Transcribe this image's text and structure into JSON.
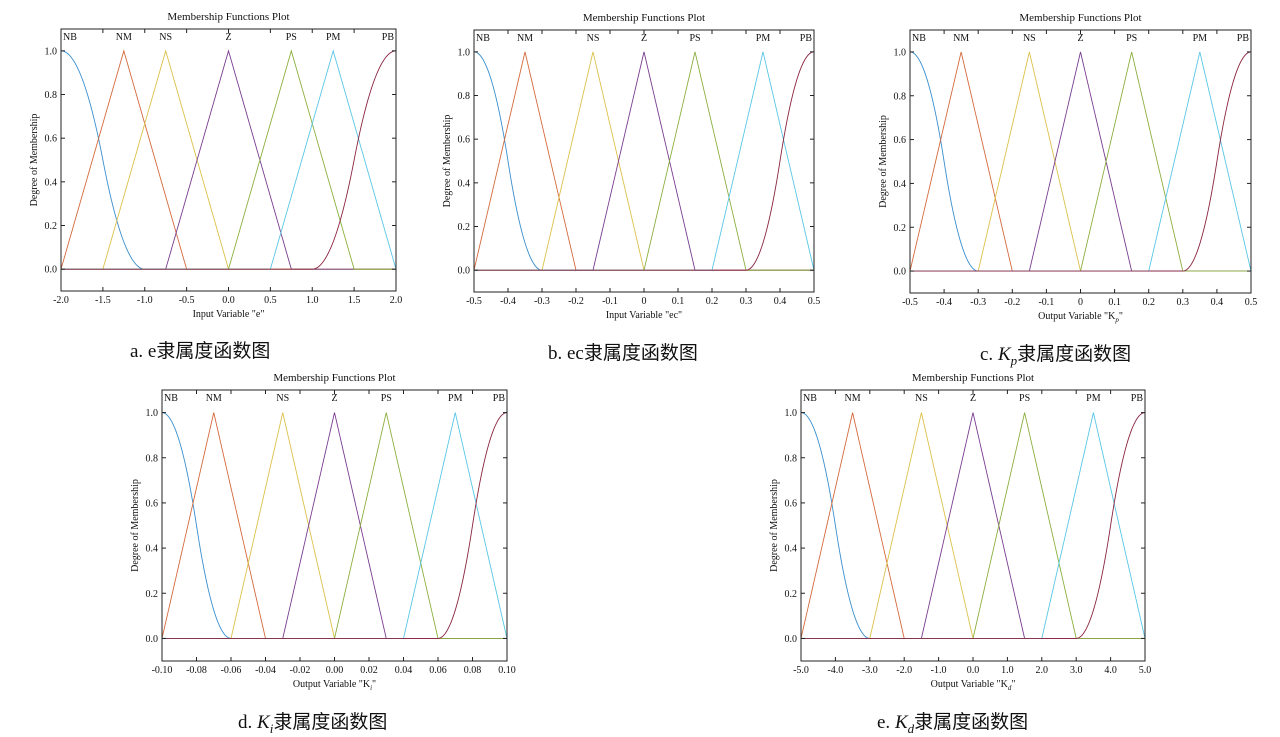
{
  "colors": {
    "NB": "#3a8fce",
    "NM": "#d46a3c",
    "NS": "#dcc14a",
    "Z": "#7a3d8f",
    "PS": "#8caf3f",
    "PM": "#59c6e6",
    "PB": "#8a2540"
  },
  "captions": [
    {
      "prefix": "a. e",
      "suffix": "隶属度函数图"
    },
    {
      "prefix": "b. ec",
      "suffix": "隶属度函数图"
    },
    {
      "prefix": "c. ",
      "var": "K",
      "sub": "p",
      "suffix": "隶属度函数图"
    },
    {
      "prefix": "d. ",
      "var": "K",
      "sub": "i",
      "suffix": "隶属度函数图"
    },
    {
      "prefix": "e. ",
      "var": "K",
      "sub": "d",
      "suffix": "隶属度函数图"
    }
  ],
  "chart_data": [
    {
      "type": "line",
      "title": "Membership Functions Plot",
      "xlabel": "Input Variable \"e\"",
      "ylabel": "Degree of Membership",
      "xlim": [
        -2,
        2
      ],
      "ylim": [
        -0.1,
        1.1
      ],
      "xticks": [
        -2,
        -1.5,
        -1,
        -0.5,
        0,
        0.5,
        1,
        1.5,
        2
      ],
      "xtick_labels": [
        "-2.0",
        "-1.5",
        "-1.0",
        "-0.5",
        "0.0",
        "0.5",
        "1.0",
        "1.5",
        "2.0"
      ],
      "yticks": [
        0,
        0.2,
        0.4,
        0.6,
        0.8,
        1.0
      ],
      "ytick_labels": [
        "0.0",
        "0.2",
        "0.4",
        "0.6",
        "0.8",
        "1.0"
      ],
      "series": [
        {
          "name": "NB",
          "kind": "zmf",
          "params": [
            -2,
            -1
          ]
        },
        {
          "name": "NM",
          "kind": "trimf",
          "params": [
            -2,
            -1.25,
            -0.5
          ]
        },
        {
          "name": "NS",
          "kind": "trimf",
          "params": [
            -1.5,
            -0.75,
            0
          ]
        },
        {
          "name": "Z",
          "kind": "trimf",
          "params": [
            -0.75,
            0,
            0.75
          ]
        },
        {
          "name": "PS",
          "kind": "trimf",
          "params": [
            0,
            0.75,
            1.5
          ]
        },
        {
          "name": "PM",
          "kind": "trimf",
          "params": [
            0.5,
            1.25,
            2
          ]
        },
        {
          "name": "PB",
          "kind": "smf",
          "params": [
            1,
            2
          ]
        }
      ]
    },
    {
      "type": "line",
      "title": "Membership Functions Plot",
      "xlabel": "Input Variable \"ec\"",
      "ylabel": "Degree of Membership",
      "xlim": [
        -0.5,
        0.5
      ],
      "ylim": [
        -0.1,
        1.1
      ],
      "xticks": [
        -0.5,
        -0.4,
        -0.3,
        -0.2,
        -0.1,
        0,
        0.1,
        0.2,
        0.3,
        0.4,
        0.5
      ],
      "xtick_labels": [
        "-0.5",
        "-0.4",
        "-0.3",
        "-0.2",
        "-0.1",
        "0",
        "0.1",
        "0.2",
        "0.3",
        "0.4",
        "0.5"
      ],
      "yticks": [
        0,
        0.2,
        0.4,
        0.6,
        0.8,
        1.0
      ],
      "ytick_labels": [
        "0.0",
        "0.2",
        "0.4",
        "0.6",
        "0.8",
        "1.0"
      ],
      "series": [
        {
          "name": "NB",
          "kind": "zmf",
          "params": [
            -0.5,
            -0.3
          ]
        },
        {
          "name": "NM",
          "kind": "trimf",
          "params": [
            -0.5,
            -0.35,
            -0.2
          ]
        },
        {
          "name": "NS",
          "kind": "trimf",
          "params": [
            -0.3,
            -0.15,
            0
          ]
        },
        {
          "name": "Z",
          "kind": "trimf",
          "params": [
            -0.15,
            0,
            0.15
          ]
        },
        {
          "name": "PS",
          "kind": "trimf",
          "params": [
            0,
            0.15,
            0.3
          ]
        },
        {
          "name": "PM",
          "kind": "trimf",
          "params": [
            0.2,
            0.35,
            0.5
          ]
        },
        {
          "name": "PB",
          "kind": "smf",
          "params": [
            0.3,
            0.5
          ]
        }
      ]
    },
    {
      "type": "line",
      "title": "Membership Functions Plot",
      "xlabel": "Output Variable \"K",
      "xlabel_sub": "p",
      "xlabel_end": "\"",
      "ylabel": "Degree of Membership",
      "xlim": [
        -0.5,
        0.5
      ],
      "ylim": [
        -0.1,
        1.1
      ],
      "xticks": [
        -0.5,
        -0.4,
        -0.3,
        -0.2,
        -0.1,
        0,
        0.1,
        0.2,
        0.3,
        0.4,
        0.5
      ],
      "xtick_labels": [
        "-0.5",
        "-0.4",
        "-0.3",
        "-0.2",
        "-0.1",
        "0",
        "0.1",
        "0.2",
        "0.3",
        "0.4",
        "0.5"
      ],
      "yticks": [
        0,
        0.2,
        0.4,
        0.6,
        0.8,
        1.0
      ],
      "ytick_labels": [
        "0.0",
        "0.2",
        "0.4",
        "0.6",
        "0.8",
        "1.0"
      ],
      "series": [
        {
          "name": "NB",
          "kind": "zmf",
          "params": [
            -0.5,
            -0.3
          ]
        },
        {
          "name": "NM",
          "kind": "trimf",
          "params": [
            -0.5,
            -0.35,
            -0.2
          ]
        },
        {
          "name": "NS",
          "kind": "trimf",
          "params": [
            -0.3,
            -0.15,
            0
          ]
        },
        {
          "name": "Z",
          "kind": "trimf",
          "params": [
            -0.15,
            0,
            0.15
          ]
        },
        {
          "name": "PS",
          "kind": "trimf",
          "params": [
            0,
            0.15,
            0.3
          ]
        },
        {
          "name": "PM",
          "kind": "trimf",
          "params": [
            0.2,
            0.35,
            0.5
          ]
        },
        {
          "name": "PB",
          "kind": "smf",
          "params": [
            0.3,
            0.5
          ]
        }
      ]
    },
    {
      "type": "line",
      "title": "Membership Functions Plot",
      "xlabel": "Output Variable \"K",
      "xlabel_sub": "i",
      "xlabel_end": "\"",
      "ylabel": "Degree of Membership",
      "xlim": [
        -0.1,
        0.1
      ],
      "ylim": [
        -0.1,
        1.1
      ],
      "xticks": [
        -0.1,
        -0.08,
        -0.06,
        -0.04,
        -0.02,
        0,
        0.02,
        0.04,
        0.06,
        0.08,
        0.1
      ],
      "xtick_labels": [
        "-0.10",
        "-0.08",
        "-0.06",
        "-0.04",
        "-0.02",
        "0.00",
        "0.02",
        "0.04",
        "0.06",
        "0.08",
        "0.10"
      ],
      "yticks": [
        0,
        0.2,
        0.4,
        0.6,
        0.8,
        1.0
      ],
      "ytick_labels": [
        "0.0",
        "0.2",
        "0.4",
        "0.6",
        "0.8",
        "1.0"
      ],
      "series": [
        {
          "name": "NB",
          "kind": "zmf",
          "params": [
            -0.1,
            -0.06
          ]
        },
        {
          "name": "NM",
          "kind": "trimf",
          "params": [
            -0.1,
            -0.07,
            -0.04
          ]
        },
        {
          "name": "NS",
          "kind": "trimf",
          "params": [
            -0.06,
            -0.03,
            0
          ]
        },
        {
          "name": "Z",
          "kind": "trimf",
          "params": [
            -0.03,
            0,
            0.03
          ]
        },
        {
          "name": "PS",
          "kind": "trimf",
          "params": [
            0,
            0.03,
            0.06
          ]
        },
        {
          "name": "PM",
          "kind": "trimf",
          "params": [
            0.04,
            0.07,
            0.1
          ]
        },
        {
          "name": "PB",
          "kind": "smf",
          "params": [
            0.06,
            0.1
          ]
        }
      ]
    },
    {
      "type": "line",
      "title": "Membership Functions Plot",
      "xlabel": "Output Variable \"K",
      "xlabel_sub": "d",
      "xlabel_end": "\"",
      "ylabel": "Degree of Membership",
      "xlim": [
        -5,
        5
      ],
      "ylim": [
        -0.1,
        1.1
      ],
      "xticks": [
        -5,
        -4,
        -3,
        -2,
        -1,
        0,
        1,
        2,
        3,
        4,
        5
      ],
      "xtick_labels": [
        "-5.0",
        "-4.0",
        "-3.0",
        "-2.0",
        "-1.0",
        "0.0",
        "1.0",
        "2.0",
        "3.0",
        "4.0",
        "5.0"
      ],
      "yticks": [
        0,
        0.2,
        0.4,
        0.6,
        0.8,
        1.0
      ],
      "ytick_labels": [
        "0.0",
        "0.2",
        "0.4",
        "0.6",
        "0.8",
        "1.0"
      ],
      "series": [
        {
          "name": "NB",
          "kind": "zmf",
          "params": [
            -5,
            -3
          ]
        },
        {
          "name": "NM",
          "kind": "trimf",
          "params": [
            -5,
            -3.5,
            -2
          ]
        },
        {
          "name": "NS",
          "kind": "trimf",
          "params": [
            -3,
            -1.5,
            0
          ]
        },
        {
          "name": "Z",
          "kind": "trimf",
          "params": [
            -1.5,
            0,
            1.5
          ]
        },
        {
          "name": "PS",
          "kind": "trimf",
          "params": [
            0,
            1.5,
            3
          ]
        },
        {
          "name": "PM",
          "kind": "trimf",
          "params": [
            2,
            3.5,
            5
          ]
        },
        {
          "name": "PB",
          "kind": "smf",
          "params": [
            3,
            5
          ]
        }
      ]
    }
  ]
}
